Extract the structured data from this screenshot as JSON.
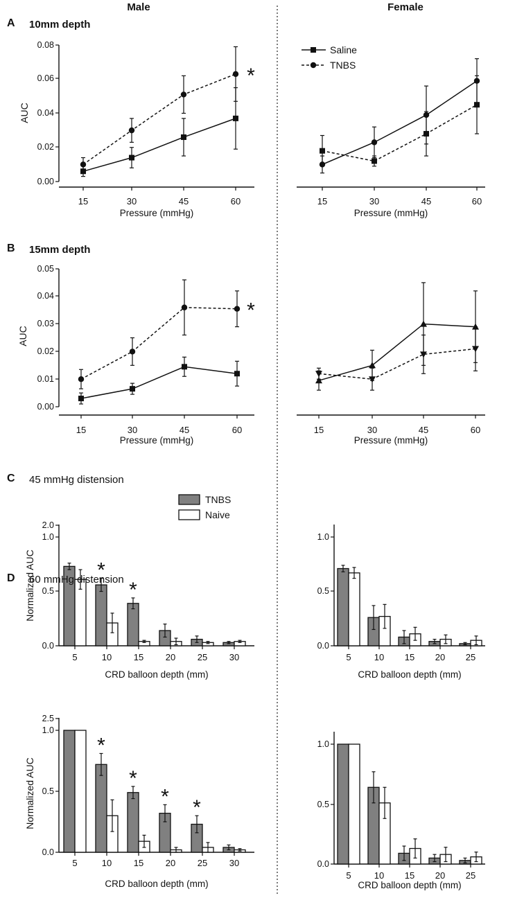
{
  "header": {
    "male": "Male",
    "female": "Female"
  },
  "chart_data": [
    {
      "id": "A-male",
      "panel": "A",
      "panel_title": "10mm depth",
      "sex": "Male",
      "type": "line",
      "xlabel": "Pressure (mmHg)",
      "ylabel": "AUC",
      "categories": [
        "15",
        "30",
        "45",
        "60"
      ],
      "yticks": [
        "0.00",
        "0.02",
        "0.04",
        "0.06",
        "0.08"
      ],
      "ylim": [
        0,
        0.08
      ],
      "legend": {
        "position": "top-right",
        "entries": [
          {
            "label": "Saline",
            "style": "solid",
            "marker": "square"
          },
          {
            "label": "TNBS",
            "style": "dashed",
            "marker": "circle"
          }
        ]
      },
      "series": [
        {
          "name": "Saline",
          "style": "solid",
          "marker": "square",
          "values": [
            0.006,
            0.014,
            0.026,
            0.037
          ],
          "err": [
            0.003,
            0.006,
            0.011,
            0.018
          ]
        },
        {
          "name": "TNBS",
          "style": "dashed",
          "marker": "circle",
          "values": [
            0.01,
            0.03,
            0.051,
            0.063
          ],
          "err": [
            0.004,
            0.007,
            0.011,
            0.016
          ]
        }
      ],
      "significance": [
        {
          "category": "60",
          "label": "*"
        }
      ]
    },
    {
      "id": "A-female",
      "panel": "A",
      "sex": "Female",
      "type": "line",
      "xlabel": "Pressure (mmHg)",
      "categories": [
        "15",
        "30",
        "45",
        "60"
      ],
      "ylim": [
        0,
        0.08
      ],
      "legend": {
        "position": "top-left",
        "entries": [
          {
            "label": "Saline",
            "style": "solid",
            "marker": "square"
          },
          {
            "label": "TNBS",
            "style": "dashed",
            "marker": "circle"
          }
        ]
      },
      "series": [
        {
          "name": "Solid (circle)",
          "style": "solid",
          "marker": "circle",
          "values": [
            0.01,
            0.023,
            0.039,
            0.059
          ],
          "err": [
            0.005,
            0.009,
            0.017,
            0.013
          ]
        },
        {
          "name": "Dashed (square)",
          "style": "dashed",
          "marker": "square",
          "values": [
            0.018,
            0.012,
            0.028,
            0.045
          ],
          "err": [
            0.009,
            0.003,
            0.013,
            0.017
          ]
        }
      ]
    },
    {
      "id": "B-male",
      "panel": "B",
      "panel_title": "15mm depth",
      "sex": "Male",
      "type": "line",
      "xlabel": "Pressure (mmHg)",
      "ylabel": "AUC",
      "categories": [
        "15",
        "30",
        "45",
        "60"
      ],
      "yticks": [
        "0.00",
        "0.01",
        "0.02",
        "0.03",
        "0.04",
        "0.05"
      ],
      "ylim": [
        0,
        0.05
      ],
      "series": [
        {
          "name": "Saline",
          "style": "solid",
          "marker": "square",
          "values": [
            0.003,
            0.0065,
            0.0145,
            0.012
          ],
          "err": [
            0.002,
            0.002,
            0.0035,
            0.0045
          ]
        },
        {
          "name": "TNBS",
          "style": "dashed",
          "marker": "circle",
          "values": [
            0.01,
            0.02,
            0.036,
            0.0355
          ],
          "err": [
            0.0035,
            0.005,
            0.01,
            0.0065
          ]
        }
      ],
      "significance": [
        {
          "category": "60",
          "label": "*"
        }
      ]
    },
    {
      "id": "B-female",
      "panel": "B",
      "sex": "Female",
      "type": "line",
      "xlabel": "Pressure (mmHg)",
      "categories": [
        "15",
        "30",
        "45",
        "60"
      ],
      "ylim": [
        0,
        0.05
      ],
      "series": [
        {
          "name": "Solid (triangle up)",
          "style": "solid",
          "marker": "triangle-up",
          "values": [
            0.0095,
            0.015,
            0.03,
            0.029
          ],
          "err": [
            0.0035,
            0.0055,
            0.015,
            0.013
          ]
        },
        {
          "name": "Dashed (triangle down)",
          "style": "dashed",
          "marker": "triangle-down",
          "values": [
            0.012,
            0.01,
            0.019,
            0.021
          ],
          "err": [
            0.002,
            0.004,
            0.007,
            0.008
          ]
        }
      ]
    },
    {
      "id": "C-male",
      "panel": "C",
      "panel_title": "45 mmHg distension",
      "sex": "Male",
      "type": "bar",
      "xlabel": "CRD balloon depth (mm)",
      "ylabel": "Normalized AUC",
      "categories": [
        "5",
        "10",
        "15",
        "20",
        "25",
        "30"
      ],
      "yticks": [
        "0.0",
        "0.5",
        "1.0"
      ],
      "break_label": "2.0",
      "ylim": [
        0,
        1.0
      ],
      "legend": {
        "position": "top-left",
        "entries": [
          {
            "label": "TNBS",
            "fill": "#808080"
          },
          {
            "label": "Naive",
            "fill": "#ffffff"
          }
        ]
      },
      "series": [
        {
          "name": "TNBS",
          "values": [
            0.73,
            0.56,
            0.39,
            0.14,
            0.06,
            0.03
          ],
          "err": [
            0.03,
            0.06,
            0.05,
            0.06,
            0.03,
            0.01
          ]
        },
        {
          "name": "Naive",
          "values": [
            0.61,
            0.21,
            0.04,
            0.04,
            0.03,
            0.04
          ],
          "err": [
            0.09,
            0.09,
            0.01,
            0.03,
            0.01,
            0.01
          ]
        }
      ],
      "significance": [
        {
          "category": "10",
          "label": "*"
        },
        {
          "category": "15",
          "label": "*"
        }
      ]
    },
    {
      "id": "C-female",
      "panel": "C",
      "sex": "Female",
      "type": "bar",
      "xlabel": "CRD balloon depth (mm)",
      "categories": [
        "5",
        "10",
        "15",
        "20",
        "25"
      ],
      "yticks": [
        "0.0",
        "0.5",
        "1.0"
      ],
      "ylim": [
        0,
        1.0
      ],
      "series": [
        {
          "name": "TNBS",
          "values": [
            0.71,
            0.26,
            0.08,
            0.04,
            0.02
          ],
          "err": [
            0.03,
            0.11,
            0.06,
            0.02,
            0.01
          ]
        },
        {
          "name": "Naive",
          "values": [
            0.67,
            0.27,
            0.11,
            0.06,
            0.05
          ],
          "err": [
            0.05,
            0.11,
            0.06,
            0.04,
            0.04
          ]
        }
      ]
    },
    {
      "id": "D-male",
      "panel": "D",
      "panel_title": "60 mmHg distension",
      "sex": "Male",
      "type": "bar",
      "xlabel": "CRD balloon depth (mm)",
      "ylabel": "Normalized AUC",
      "categories": [
        "5",
        "10",
        "15",
        "20",
        "25",
        "30"
      ],
      "yticks": [
        "0.0",
        "0.5",
        "1.0"
      ],
      "break_label": "2.5",
      "ylim": [
        0,
        1.0
      ],
      "series": [
        {
          "name": "TNBS",
          "values": [
            1.0,
            0.72,
            0.49,
            0.32,
            0.23,
            0.04
          ],
          "err": [
            0,
            0.09,
            0.05,
            0.07,
            0.07,
            0.02
          ]
        },
        {
          "name": "Naive",
          "values": [
            1.0,
            0.3,
            0.09,
            0.02,
            0.04,
            0.02
          ],
          "err": [
            0,
            0.13,
            0.05,
            0.02,
            0.04,
            0.01
          ]
        }
      ],
      "significance": [
        {
          "category": "10",
          "label": "*"
        },
        {
          "category": "15",
          "label": "*"
        },
        {
          "category": "20",
          "label": "*"
        },
        {
          "category": "25",
          "label": "*"
        }
      ]
    },
    {
      "id": "D-female",
      "panel": "D",
      "sex": "Female",
      "type": "bar",
      "xlabel": "CRD balloon depth (mm)",
      "categories": [
        "5",
        "10",
        "15",
        "20",
        "25"
      ],
      "yticks": [
        "0.0",
        "0.5",
        "1.0"
      ],
      "ylim": [
        0,
        1.0
      ],
      "series": [
        {
          "name": "TNBS",
          "values": [
            1.0,
            0.64,
            0.09,
            0.05,
            0.03
          ],
          "err": [
            0,
            0.13,
            0.06,
            0.03,
            0.02
          ]
        },
        {
          "name": "Naive",
          "values": [
            1.0,
            0.51,
            0.13,
            0.08,
            0.06
          ],
          "err": [
            0,
            0.13,
            0.08,
            0.06,
            0.04
          ]
        }
      ]
    }
  ]
}
